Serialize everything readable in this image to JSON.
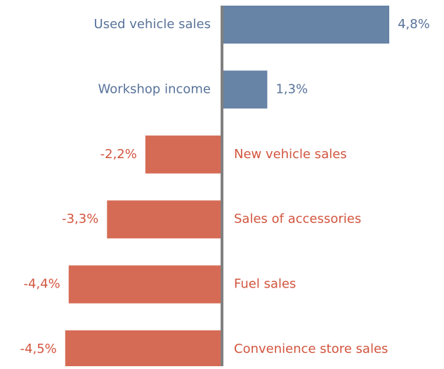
{
  "chart_data": {
    "type": "bar",
    "orientation": "horizontal",
    "categories": [
      "Used vehicle sales",
      "Workshop income",
      "New vehicle sales",
      "Sales of accessories",
      "Fuel sales",
      "Convenience store sales"
    ],
    "values": [
      4.8,
      1.3,
      -2.2,
      -3.3,
      -4.4,
      -4.5
    ],
    "value_labels": [
      "4,8%",
      "1,3%",
      "-2,2%",
      "-3,3%",
      "-4,4%",
      "-4,5%"
    ],
    "positive_color": "#6783a6",
    "negative_color": "#d66b55",
    "positive_text_color": "#58739a",
    "negative_text_color": "#d2553e",
    "axis_color": "#808080"
  }
}
